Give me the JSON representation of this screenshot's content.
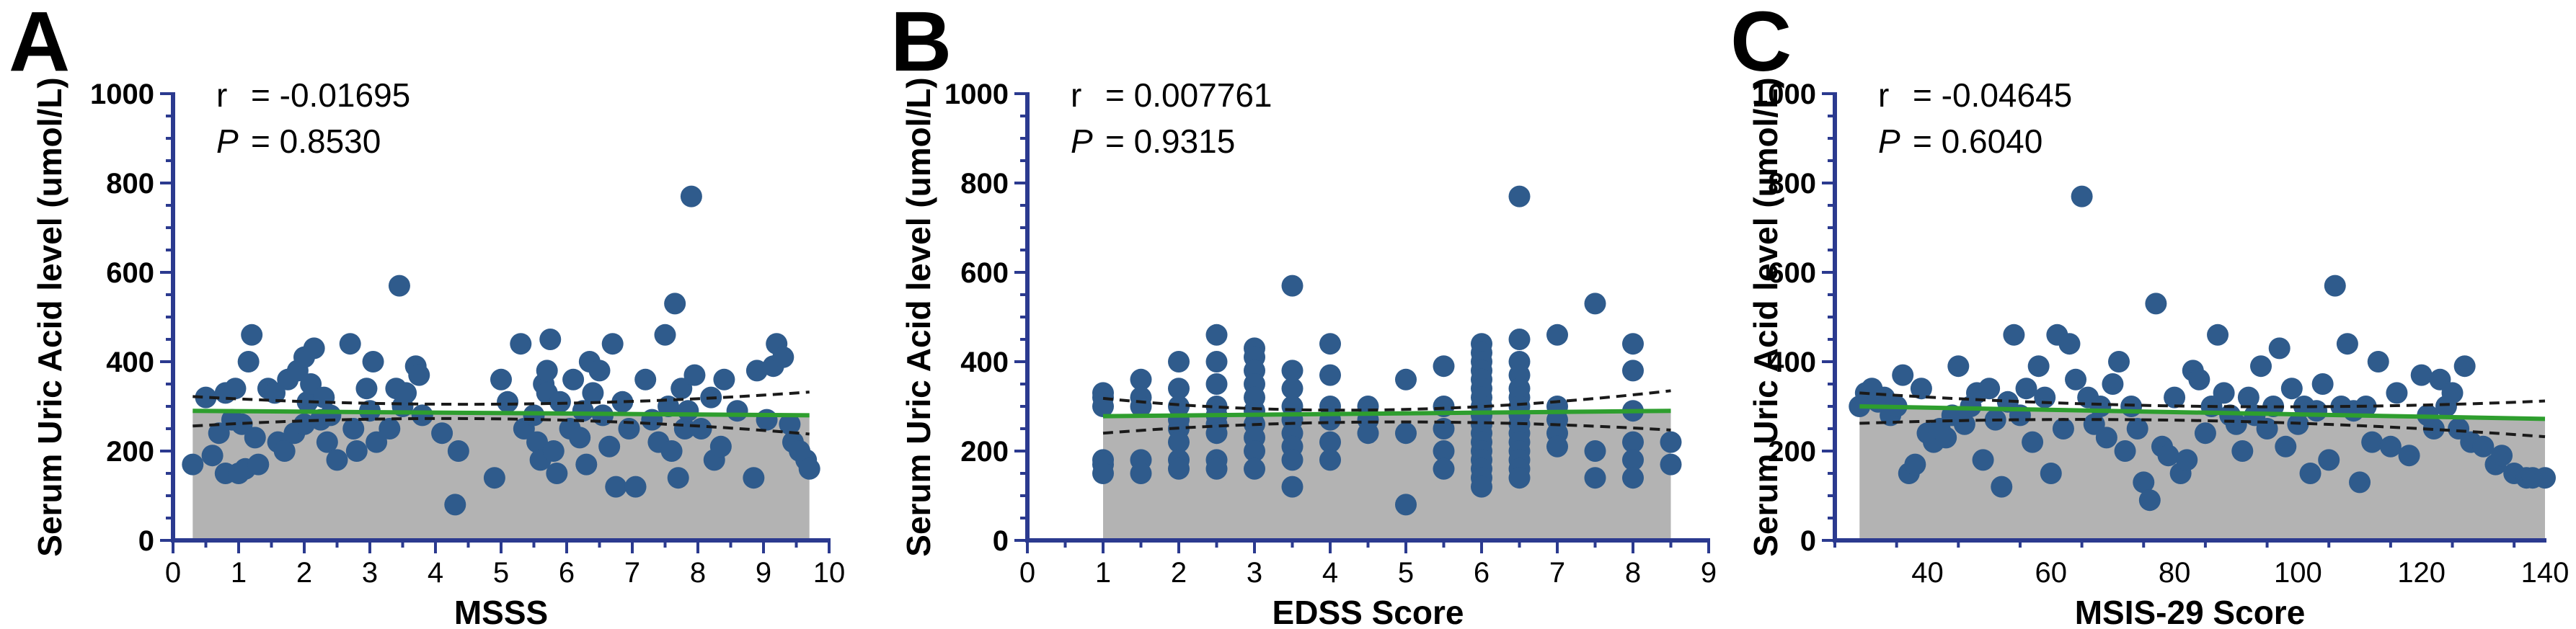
{
  "colors": {
    "point": "#2f5b8c",
    "regression": "#2e9e2e",
    "ci": "#1a1a1a",
    "fill": "#b3b3b3",
    "axis": "#2b3a8f"
  },
  "chart_data": [
    {
      "type": "scatter",
      "panel": "A",
      "xlabel": "MSSS",
      "ylabel": "Serum Uric Acid level (umol/L)",
      "xlim": [
        0,
        10
      ],
      "ylim": [
        0,
        1000
      ],
      "xticks": [
        0,
        1,
        2,
        3,
        4,
        5,
        6,
        7,
        8,
        9,
        10
      ],
      "yticks": [
        0,
        200,
        400,
        600,
        800,
        1000
      ],
      "stats": {
        "r_label": "r",
        "r_value": "=  -0.01695",
        "p_label": "P",
        "p_value": "=   0.8530"
      },
      "regression": {
        "x0": 0.3,
        "y0": 290,
        "x1": 9.7,
        "y1": 280
      },
      "ci_upper": [
        [
          0.3,
          322
        ],
        [
          5.0,
          305
        ],
        [
          9.7,
          332
        ]
      ],
      "ci_lower": [
        [
          0.3,
          256
        ],
        [
          5.0,
          272
        ],
        [
          9.7,
          238
        ]
      ],
      "points": [
        [
          0.3,
          170
        ],
        [
          0.5,
          320
        ],
        [
          0.6,
          190
        ],
        [
          0.7,
          240
        ],
        [
          0.8,
          330
        ],
        [
          0.8,
          150
        ],
        [
          0.9,
          270
        ],
        [
          0.95,
          340
        ],
        [
          1.0,
          150
        ],
        [
          1.05,
          260
        ],
        [
          1.1,
          160
        ],
        [
          1.15,
          400
        ],
        [
          1.2,
          460
        ],
        [
          1.25,
          230
        ],
        [
          1.3,
          170
        ],
        [
          1.45,
          340
        ],
        [
          1.55,
          330
        ],
        [
          1.6,
          220
        ],
        [
          1.7,
          200
        ],
        [
          1.75,
          360
        ],
        [
          1.85,
          240
        ],
        [
          1.9,
          380
        ],
        [
          2.0,
          410
        ],
        [
          2.0,
          260
        ],
        [
          2.05,
          310
        ],
        [
          2.1,
          350
        ],
        [
          2.15,
          430
        ],
        [
          2.25,
          270
        ],
        [
          2.3,
          320
        ],
        [
          2.35,
          220
        ],
        [
          2.4,
          280
        ],
        [
          2.5,
          180
        ],
        [
          2.7,
          440
        ],
        [
          2.75,
          250
        ],
        [
          2.8,
          200
        ],
        [
          2.95,
          340
        ],
        [
          3.0,
          290
        ],
        [
          3.05,
          400
        ],
        [
          3.1,
          220
        ],
        [
          3.3,
          250
        ],
        [
          3.4,
          340
        ],
        [
          3.45,
          570
        ],
        [
          3.5,
          300
        ],
        [
          3.55,
          330
        ],
        [
          3.7,
          390
        ],
        [
          3.75,
          370
        ],
        [
          3.8,
          280
        ],
        [
          4.1,
          240
        ],
        [
          4.3,
          80
        ],
        [
          4.35,
          200
        ],
        [
          4.9,
          140
        ],
        [
          5.0,
          360
        ],
        [
          5.1,
          310
        ],
        [
          5.3,
          440
        ],
        [
          5.35,
          250
        ],
        [
          5.5,
          280
        ],
        [
          5.55,
          220
        ],
        [
          5.6,
          180
        ],
        [
          5.65,
          350
        ],
        [
          5.7,
          330
        ],
        [
          5.7,
          380
        ],
        [
          5.75,
          450
        ],
        [
          5.8,
          200
        ],
        [
          5.85,
          150
        ],
        [
          5.9,
          310
        ],
        [
          6.05,
          250
        ],
        [
          6.1,
          360
        ],
        [
          6.2,
          230
        ],
        [
          6.25,
          290
        ],
        [
          6.3,
          170
        ],
        [
          6.35,
          400
        ],
        [
          6.4,
          330
        ],
        [
          6.5,
          380
        ],
        [
          6.55,
          280
        ],
        [
          6.65,
          210
        ],
        [
          6.7,
          440
        ],
        [
          6.75,
          120
        ],
        [
          6.85,
          310
        ],
        [
          6.95,
          250
        ],
        [
          7.05,
          120
        ],
        [
          7.2,
          360
        ],
        [
          7.3,
          270
        ],
        [
          7.4,
          220
        ],
        [
          7.5,
          460
        ],
        [
          7.55,
          300
        ],
        [
          7.6,
          200
        ],
        [
          7.65,
          530
        ],
        [
          7.7,
          140
        ],
        [
          7.75,
          340
        ],
        [
          7.8,
          250
        ],
        [
          7.85,
          290
        ],
        [
          7.9,
          770
        ],
        [
          7.95,
          370
        ],
        [
          8.05,
          250
        ],
        [
          8.2,
          320
        ],
        [
          8.25,
          180
        ],
        [
          8.35,
          210
        ],
        [
          8.4,
          360
        ],
        [
          8.6,
          290
        ],
        [
          8.85,
          140
        ],
        [
          8.9,
          380
        ],
        [
          9.05,
          270
        ],
        [
          9.15,
          390
        ],
        [
          9.2,
          440
        ],
        [
          9.3,
          410
        ],
        [
          9.4,
          260
        ],
        [
          9.45,
          220
        ],
        [
          9.55,
          200
        ],
        [
          9.65,
          180
        ],
        [
          9.7,
          160
        ]
      ]
    },
    {
      "type": "scatter",
      "panel": "B",
      "xlabel": "EDSS Score",
      "ylabel": "Serum Uric Acid level (umol/L)",
      "xlim": [
        0,
        9
      ],
      "ylim": [
        0,
        1000
      ],
      "xticks": [
        0,
        1,
        2,
        3,
        4,
        5,
        6,
        7,
        8,
        9
      ],
      "yticks": [
        0,
        200,
        400,
        600,
        800,
        1000
      ],
      "stats": {
        "r_label": "r",
        "r_value": "=  0.007761",
        "p_label": "P",
        "p_value": "= 0.9315"
      },
      "regression": {
        "x0": 1.0,
        "y0": 278,
        "x1": 8.5,
        "y1": 290
      },
      "ci_upper": [
        [
          1.0,
          318
        ],
        [
          4.5,
          292
        ],
        [
          8.5,
          335
        ]
      ],
      "ci_lower": [
        [
          1.0,
          240
        ],
        [
          4.5,
          265
        ],
        [
          8.5,
          247
        ]
      ],
      "points": [
        [
          1.0,
          330
        ],
        [
          1.0,
          320
        ],
        [
          1.0,
          300
        ],
        [
          1.0,
          180
        ],
        [
          1.0,
          170
        ],
        [
          1.0,
          150
        ],
        [
          1.5,
          360
        ],
        [
          1.5,
          320
        ],
        [
          1.5,
          300
        ],
        [
          1.5,
          180
        ],
        [
          1.5,
          150
        ],
        [
          2.0,
          400
        ],
        [
          2.0,
          340
        ],
        [
          2.0,
          300
        ],
        [
          2.0,
          270
        ],
        [
          2.0,
          250
        ],
        [
          2.0,
          220
        ],
        [
          2.0,
          180
        ],
        [
          2.0,
          160
        ],
        [
          2.5,
          460
        ],
        [
          2.5,
          400
        ],
        [
          2.5,
          350
        ],
        [
          2.5,
          300
        ],
        [
          2.5,
          280
        ],
        [
          2.5,
          260
        ],
        [
          2.5,
          240
        ],
        [
          2.5,
          180
        ],
        [
          2.5,
          160
        ],
        [
          3.0,
          430
        ],
        [
          3.0,
          410
        ],
        [
          3.0,
          380
        ],
        [
          3.0,
          350
        ],
        [
          3.0,
          320
        ],
        [
          3.0,
          290
        ],
        [
          3.0,
          260
        ],
        [
          3.0,
          230
        ],
        [
          3.0,
          200
        ],
        [
          3.0,
          160
        ],
        [
          3.5,
          570
        ],
        [
          3.5,
          380
        ],
        [
          3.5,
          340
        ],
        [
          3.5,
          300
        ],
        [
          3.5,
          270
        ],
        [
          3.5,
          240
        ],
        [
          3.5,
          210
        ],
        [
          3.5,
          180
        ],
        [
          3.5,
          120
        ],
        [
          4.0,
          440
        ],
        [
          4.0,
          370
        ],
        [
          4.0,
          300
        ],
        [
          4.0,
          270
        ],
        [
          4.0,
          220
        ],
        [
          4.0,
          180
        ],
        [
          4.5,
          300
        ],
        [
          4.5,
          270
        ],
        [
          4.5,
          240
        ],
        [
          5.0,
          360
        ],
        [
          5.0,
          240
        ],
        [
          5.0,
          80
        ],
        [
          5.5,
          390
        ],
        [
          5.5,
          300
        ],
        [
          5.5,
          250
        ],
        [
          5.5,
          200
        ],
        [
          5.5,
          160
        ],
        [
          6.0,
          440
        ],
        [
          6.0,
          420
        ],
        [
          6.0,
          400
        ],
        [
          6.0,
          380
        ],
        [
          6.0,
          360
        ],
        [
          6.0,
          340
        ],
        [
          6.0,
          320
        ],
        [
          6.0,
          300
        ],
        [
          6.0,
          280
        ],
        [
          6.0,
          260
        ],
        [
          6.0,
          240
        ],
        [
          6.0,
          220
        ],
        [
          6.0,
          200
        ],
        [
          6.0,
          180
        ],
        [
          6.0,
          160
        ],
        [
          6.0,
          140
        ],
        [
          6.0,
          120
        ],
        [
          6.5,
          770
        ],
        [
          6.5,
          450
        ],
        [
          6.5,
          400
        ],
        [
          6.5,
          370
        ],
        [
          6.5,
          340
        ],
        [
          6.5,
          320
        ],
        [
          6.5,
          300
        ],
        [
          6.5,
          280
        ],
        [
          6.5,
          260
        ],
        [
          6.5,
          240
        ],
        [
          6.5,
          220
        ],
        [
          6.5,
          200
        ],
        [
          6.5,
          180
        ],
        [
          6.5,
          160
        ],
        [
          6.5,
          140
        ],
        [
          7.0,
          460
        ],
        [
          7.0,
          300
        ],
        [
          7.0,
          270
        ],
        [
          7.0,
          240
        ],
        [
          7.0,
          210
        ],
        [
          7.5,
          530
        ],
        [
          7.5,
          200
        ],
        [
          7.5,
          140
        ],
        [
          8.0,
          440
        ],
        [
          8.0,
          380
        ],
        [
          8.0,
          290
        ],
        [
          8.0,
          220
        ],
        [
          8.0,
          180
        ],
        [
          8.0,
          140
        ],
        [
          8.5,
          220
        ],
        [
          8.5,
          170
        ]
      ]
    },
    {
      "type": "scatter",
      "panel": "C",
      "xlabel": "MSIS-29 Score",
      "ylabel": "Serum Uric Acid level (umol/L)",
      "xlim": [
        25,
        140
      ],
      "ylim": [
        0,
        1000
      ],
      "xticks": [
        40,
        60,
        80,
        100,
        120,
        140
      ],
      "yticks": [
        0,
        200,
        400,
        600,
        800,
        1000
      ],
      "stats": {
        "r_label": "r",
        "r_value": "=  -0.04645",
        "p_label": "P",
        "p_value": "=   0.6040"
      },
      "regression": {
        "x0": 29,
        "y0": 300,
        "x1": 140,
        "y1": 272
      },
      "ci_upper": [
        [
          29,
          330
        ],
        [
          85,
          300
        ],
        [
          140,
          312
        ]
      ],
      "ci_lower": [
        [
          29,
          262
        ],
        [
          85,
          268
        ],
        [
          140,
          232
        ]
      ],
      "points": [
        [
          29,
          300
        ],
        [
          30,
          330
        ],
        [
          31,
          340
        ],
        [
          32,
          310
        ],
        [
          33,
          320
        ],
        [
          34,
          280
        ],
        [
          35,
          300
        ],
        [
          36,
          370
        ],
        [
          37,
          150
        ],
        [
          38,
          170
        ],
        [
          39,
          340
        ],
        [
          40,
          240
        ],
        [
          41,
          220
        ],
        [
          42,
          250
        ],
        [
          43,
          230
        ],
        [
          44,
          280
        ],
        [
          45,
          390
        ],
        [
          46,
          260
        ],
        [
          47,
          300
        ],
        [
          48,
          330
        ],
        [
          49,
          180
        ],
        [
          50,
          340
        ],
        [
          51,
          270
        ],
        [
          52,
          120
        ],
        [
          53,
          310
        ],
        [
          54,
          460
        ],
        [
          55,
          280
        ],
        [
          56,
          340
        ],
        [
          57,
          220
        ],
        [
          58,
          390
        ],
        [
          59,
          320
        ],
        [
          60,
          150
        ],
        [
          61,
          460
        ],
        [
          62,
          250
        ],
        [
          63,
          440
        ],
        [
          64,
          360
        ],
        [
          65,
          770
        ],
        [
          66,
          320
        ],
        [
          67,
          260
        ],
        [
          68,
          300
        ],
        [
          69,
          230
        ],
        [
          70,
          350
        ],
        [
          71,
          400
        ],
        [
          72,
          200
        ],
        [
          73,
          300
        ],
        [
          74,
          250
        ],
        [
          75,
          130
        ],
        [
          76,
          90
        ],
        [
          77,
          530
        ],
        [
          78,
          210
        ],
        [
          79,
          190
        ],
        [
          80,
          320
        ],
        [
          81,
          150
        ],
        [
          82,
          180
        ],
        [
          83,
          380
        ],
        [
          84,
          360
        ],
        [
          85,
          240
        ],
        [
          86,
          300
        ],
        [
          87,
          460
        ],
        [
          88,
          330
        ],
        [
          89,
          280
        ],
        [
          90,
          260
        ],
        [
          91,
          200
        ],
        [
          92,
          320
        ],
        [
          93,
          280
        ],
        [
          94,
          390
        ],
        [
          95,
          250
        ],
        [
          96,
          300
        ],
        [
          97,
          430
        ],
        [
          98,
          210
        ],
        [
          99,
          340
        ],
        [
          100,
          260
        ],
        [
          101,
          300
        ],
        [
          102,
          150
        ],
        [
          103,
          290
        ],
        [
          104,
          350
        ],
        [
          105,
          180
        ],
        [
          106,
          570
        ],
        [
          107,
          300
        ],
        [
          108,
          440
        ],
        [
          109,
          290
        ],
        [
          110,
          130
        ],
        [
          111,
          300
        ],
        [
          112,
          220
        ],
        [
          113,
          400
        ],
        [
          115,
          210
        ],
        [
          116,
          330
        ],
        [
          118,
          190
        ],
        [
          120,
          370
        ],
        [
          121,
          280
        ],
        [
          122,
          250
        ],
        [
          123,
          360
        ],
        [
          124,
          300
        ],
        [
          125,
          330
        ],
        [
          126,
          250
        ],
        [
          127,
          390
        ],
        [
          128,
          220
        ],
        [
          130,
          210
        ],
        [
          132,
          170
        ],
        [
          133,
          190
        ],
        [
          135,
          150
        ],
        [
          137,
          140
        ],
        [
          138,
          140
        ],
        [
          140,
          140
        ]
      ]
    }
  ]
}
